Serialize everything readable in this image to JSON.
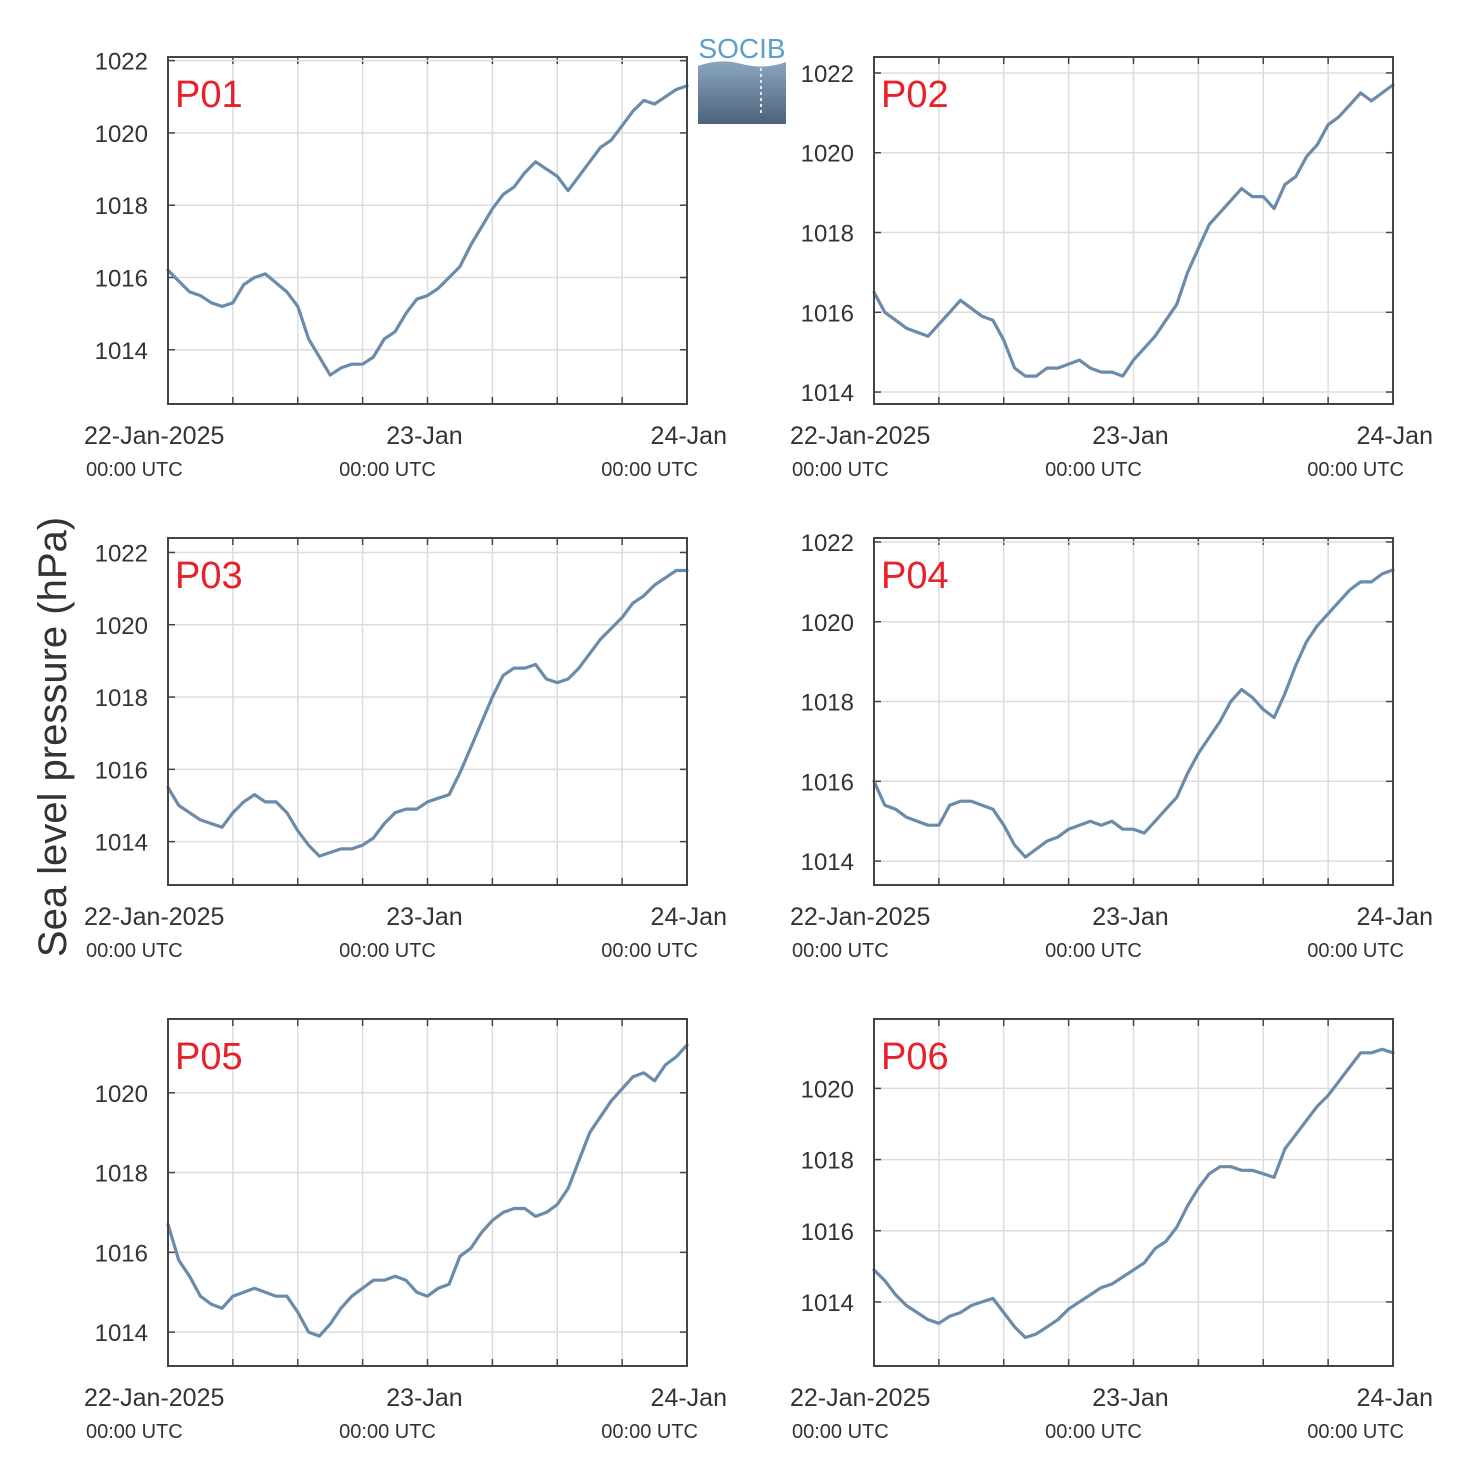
{
  "ylabel": "Sea level pressure (hPa)",
  "logo": {
    "text": "SOCIB"
  },
  "colors": {
    "line": "#6b8bab",
    "label": "#e8202a",
    "grid": "#dddddd",
    "axis": "#444444"
  },
  "chart_data": [
    {
      "type": "line",
      "label": "P01",
      "x_ticks": [
        {
          "line1": "22-Jan-2025",
          "line2": "00:00 UTC"
        },
        {
          "line1": "23-Jan",
          "line2": "00:00 UTC"
        },
        {
          "line1": "24-Jan",
          "line2": "00:00 UTC"
        }
      ],
      "xlim_hours": [
        0,
        48
      ],
      "ylim": [
        1012.5,
        1022.1
      ],
      "yticks": [
        1014,
        1016,
        1018,
        1020,
        1022
      ],
      "x": [
        0,
        1,
        2,
        3,
        4,
        5,
        6,
        7,
        8,
        9,
        11,
        12,
        13,
        14,
        15,
        16,
        17,
        18,
        19,
        20,
        21,
        22,
        23,
        24,
        25,
        26,
        27,
        28,
        29,
        30,
        31,
        32,
        33,
        34,
        35,
        36,
        37,
        38,
        39,
        40,
        41,
        42,
        43,
        44,
        45,
        46,
        47,
        48
      ],
      "y": [
        1016.2,
        1015.9,
        1015.6,
        1015.5,
        1015.3,
        1015.2,
        1015.3,
        1015.8,
        1016.0,
        1016.1,
        1015.6,
        1015.2,
        1014.3,
        1013.8,
        1013.3,
        1013.5,
        1013.6,
        1013.6,
        1013.8,
        1014.3,
        1014.5,
        1015.0,
        1015.4,
        1015.5,
        1015.7,
        1016.0,
        1016.3,
        1016.9,
        1017.4,
        1017.9,
        1018.3,
        1018.5,
        1018.9,
        1019.2,
        1019.0,
        1018.8,
        1018.4,
        1018.8,
        1019.2,
        1019.6,
        1019.8,
        1020.2,
        1020.6,
        1020.9,
        1020.8,
        1021.0,
        1021.2,
        1021.3
      ]
    },
    {
      "type": "line",
      "label": "P02",
      "x_ticks": [
        {
          "line1": "22-Jan-2025",
          "line2": "00:00 UTC"
        },
        {
          "line1": "23-Jan",
          "line2": "00:00 UTC"
        },
        {
          "line1": "24-Jan",
          "line2": "00:00 UTC"
        }
      ],
      "xlim_hours": [
        0,
        48
      ],
      "ylim": [
        1013.7,
        1022.4
      ],
      "yticks": [
        1014,
        1016,
        1018,
        1020,
        1022
      ],
      "x": [
        0,
        1,
        2,
        3,
        4,
        5,
        6,
        7,
        8,
        9,
        10,
        11,
        12,
        13,
        14,
        15,
        16,
        17,
        18,
        19,
        20,
        21,
        22,
        23,
        24,
        25,
        26,
        27,
        28,
        29,
        30,
        31,
        32,
        33,
        34,
        35,
        36,
        37,
        38,
        39,
        40,
        41,
        42,
        43,
        44,
        45,
        46,
        47,
        48
      ],
      "y": [
        1016.5,
        1016.0,
        1015.8,
        1015.6,
        1015.5,
        1015.4,
        1015.7,
        1016.0,
        1016.3,
        1016.1,
        1015.9,
        1015.8,
        1015.3,
        1014.6,
        1014.4,
        1014.4,
        1014.6,
        1014.6,
        1014.7,
        1014.8,
        1014.6,
        1014.5,
        1014.5,
        1014.4,
        1014.8,
        1015.1,
        1015.4,
        1015.8,
        1016.2,
        1017.0,
        1017.6,
        1018.2,
        1018.5,
        1018.8,
        1019.1,
        1018.9,
        1018.9,
        1018.6,
        1019.2,
        1019.4,
        1019.9,
        1020.2,
        1020.7,
        1020.9,
        1021.2,
        1021.5,
        1021.3,
        1021.5,
        1021.7
      ]
    },
    {
      "type": "line",
      "label": "P03",
      "x_ticks": [
        {
          "line1": "22-Jan-2025",
          "line2": "00:00 UTC"
        },
        {
          "line1": "23-Jan",
          "line2": "00:00 UTC"
        },
        {
          "line1": "24-Jan",
          "line2": "00:00 UTC"
        }
      ],
      "xlim_hours": [
        0,
        48
      ],
      "ylim": [
        1012.8,
        1022.4
      ],
      "yticks": [
        1014,
        1016,
        1018,
        1020,
        1022
      ],
      "x": [
        0,
        1,
        2,
        3,
        4,
        5,
        6,
        7,
        8,
        9,
        10,
        11,
        12,
        13,
        14,
        15,
        16,
        17,
        18,
        19,
        20,
        21,
        22,
        23,
        24,
        25,
        26,
        27,
        28,
        29,
        30,
        31,
        32,
        33,
        34,
        35,
        36,
        37,
        38,
        39,
        40,
        41,
        42,
        43,
        44,
        45,
        46,
        47,
        48
      ],
      "y": [
        1015.5,
        1015.0,
        1014.8,
        1014.6,
        1014.5,
        1014.4,
        1014.8,
        1015.1,
        1015.3,
        1015.1,
        1015.1,
        1014.8,
        1014.3,
        1013.9,
        1013.6,
        1013.7,
        1013.8,
        1013.8,
        1013.9,
        1014.1,
        1014.5,
        1014.8,
        1014.9,
        1014.9,
        1015.1,
        1015.2,
        1015.3,
        1015.9,
        1016.6,
        1017.3,
        1018.0,
        1018.6,
        1018.8,
        1018.8,
        1018.9,
        1018.5,
        1018.4,
        1018.5,
        1018.8,
        1019.2,
        1019.6,
        1019.9,
        1020.2,
        1020.6,
        1020.8,
        1021.1,
        1021.3,
        1021.5,
        1021.5
      ]
    },
    {
      "type": "line",
      "label": "P04",
      "x_ticks": [
        {
          "line1": "22-Jan-2025",
          "line2": "00:00 UTC"
        },
        {
          "line1": "23-Jan",
          "line2": "00:00 UTC"
        },
        {
          "line1": "24-Jan",
          "line2": "00:00 UTC"
        }
      ],
      "xlim_hours": [
        0,
        48
      ],
      "ylim": [
        1013.4,
        1022.1
      ],
      "yticks": [
        1014,
        1016,
        1018,
        1020,
        1022
      ],
      "x": [
        0,
        1,
        2,
        3,
        4,
        5,
        6,
        7,
        8,
        9,
        10,
        11,
        12,
        13,
        14,
        15,
        16,
        17,
        18,
        19,
        20,
        21,
        22,
        23,
        24,
        25,
        26,
        27,
        28,
        29,
        30,
        31,
        32,
        33,
        34,
        35,
        36,
        37,
        38,
        39,
        40,
        41,
        42,
        43,
        44,
        45,
        46,
        47,
        48
      ],
      "y": [
        1016.0,
        1015.4,
        1015.3,
        1015.1,
        1015.0,
        1014.9,
        1014.9,
        1015.4,
        1015.5,
        1015.5,
        1015.4,
        1015.3,
        1014.9,
        1014.4,
        1014.1,
        1014.3,
        1014.5,
        1014.6,
        1014.8,
        1014.9,
        1015.0,
        1014.9,
        1015.0,
        1014.8,
        1014.8,
        1014.7,
        1015.0,
        1015.3,
        1015.6,
        1016.2,
        1016.7,
        1017.1,
        1017.5,
        1018.0,
        1018.3,
        1018.1,
        1017.8,
        1017.6,
        1018.2,
        1018.9,
        1019.5,
        1019.9,
        1020.2,
        1020.5,
        1020.8,
        1021.0,
        1021.0,
        1021.2,
        1021.3
      ]
    },
    {
      "type": "line",
      "label": "P05",
      "x_ticks": [
        {
          "line1": "22-Jan-2025",
          "line2": "00:00 UTC"
        },
        {
          "line1": "23-Jan",
          "line2": "00:00 UTC"
        },
        {
          "line1": "24-Jan",
          "line2": "00:00 UTC"
        }
      ],
      "xlim_hours": [
        0,
        48
      ],
      "ylim": [
        1013.15,
        1021.85
      ],
      "yticks": [
        1014,
        1016,
        1018,
        1020
      ],
      "x": [
        0,
        1,
        2,
        3,
        4,
        5,
        6,
        7,
        8,
        9,
        10,
        11,
        12,
        13,
        14,
        15,
        16,
        17,
        18,
        19,
        20,
        21,
        22,
        23,
        24,
        25,
        26,
        27,
        28,
        29,
        30,
        31,
        32,
        33,
        34,
        35,
        36,
        37,
        38,
        39,
        40,
        41,
        42,
        43,
        44,
        45,
        46,
        47,
        48
      ],
      "y": [
        1016.7,
        1015.8,
        1015.4,
        1014.9,
        1014.7,
        1014.6,
        1014.9,
        1015.0,
        1015.1,
        1015.0,
        1014.9,
        1014.9,
        1014.5,
        1014.0,
        1013.9,
        1014.2,
        1014.6,
        1014.9,
        1015.1,
        1015.3,
        1015.3,
        1015.4,
        1015.3,
        1015.0,
        1014.9,
        1015.1,
        1015.2,
        1015.9,
        1016.1,
        1016.5,
        1016.8,
        1017.0,
        1017.1,
        1017.1,
        1016.9,
        1017.0,
        1017.2,
        1017.6,
        1018.3,
        1019.0,
        1019.4,
        1019.8,
        1020.1,
        1020.4,
        1020.5,
        1020.3,
        1020.7,
        1020.9,
        1021.2
      ]
    },
    {
      "type": "line",
      "label": "P06",
      "x_ticks": [
        {
          "line1": "22-Jan-2025",
          "line2": "00:00 UTC"
        },
        {
          "line1": "23-Jan",
          "line2": "00:00 UTC"
        },
        {
          "line1": "24-Jan",
          "line2": "00:00 UTC"
        }
      ],
      "xlim_hours": [
        0,
        48
      ],
      "ylim": [
        1012.2,
        1021.95
      ],
      "yticks": [
        1014,
        1016,
        1018,
        1020
      ],
      "x": [
        0,
        1,
        2,
        3,
        4,
        5,
        6,
        7,
        8,
        9,
        10,
        11,
        12,
        13,
        14,
        15,
        16,
        17,
        18,
        19,
        20,
        21,
        22,
        23,
        24,
        25,
        26,
        27,
        28,
        29,
        30,
        31,
        32,
        33,
        34,
        35,
        36,
        37,
        38,
        39,
        40,
        41,
        42,
        43,
        44,
        45,
        46,
        47,
        48
      ],
      "y": [
        1014.9,
        1014.6,
        1014.2,
        1013.9,
        1013.7,
        1013.5,
        1013.4,
        1013.6,
        1013.7,
        1013.9,
        1014.0,
        1014.1,
        1013.7,
        1013.3,
        1013.0,
        1013.1,
        1013.3,
        1013.5,
        1013.8,
        1014.0,
        1014.2,
        1014.4,
        1014.5,
        1014.7,
        1014.9,
        1015.1,
        1015.5,
        1015.7,
        1016.1,
        1016.7,
        1017.2,
        1017.6,
        1017.8,
        1017.8,
        1017.7,
        1017.7,
        1017.6,
        1017.5,
        1018.3,
        1018.7,
        1019.1,
        1019.5,
        1019.8,
        1020.2,
        1020.6,
        1021.0,
        1021.0,
        1021.1,
        1021.0
      ]
    }
  ]
}
